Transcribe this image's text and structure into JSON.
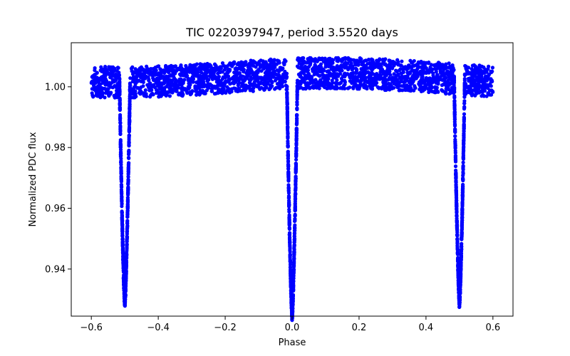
{
  "chart_data": {
    "type": "scatter",
    "title": "TIC 0220397947, period 3.5520 days",
    "xlabel": "Phase",
    "ylabel": "Normalized PDC flux",
    "xlim": [
      -0.66,
      0.66
    ],
    "ylim": [
      0.9245,
      1.0145
    ],
    "xticks": [
      -0.6,
      -0.4,
      -0.2,
      0.0,
      0.2,
      0.4,
      0.6
    ],
    "xtick_labels": [
      "−0.6",
      "−0.4",
      "−0.2",
      "0.0",
      "0.2",
      "0.4",
      "0.6"
    ],
    "yticks": [
      0.94,
      0.96,
      0.98,
      1.0
    ],
    "ytick_labels": [
      "0.94",
      "0.96",
      "0.98",
      "1.00"
    ],
    "grid": false,
    "legend": "none",
    "marker_color": "#0000ff",
    "phase_range": [
      -0.6,
      0.6
    ],
    "eclipses": [
      {
        "phase": -0.5,
        "min_flux": 0.929,
        "half_width": 0.016
      },
      {
        "phase": 0.0,
        "min_flux": 0.9245,
        "half_width": 0.016
      },
      {
        "phase": 0.5,
        "min_flux": 0.929,
        "half_width": 0.016
      }
    ],
    "out_of_eclipse_flux": {
      "low": 0.998,
      "high": 1.01,
      "center": 1.003
    },
    "series": [
      {
        "name": "",
        "x": [],
        "y": []
      }
    ]
  }
}
